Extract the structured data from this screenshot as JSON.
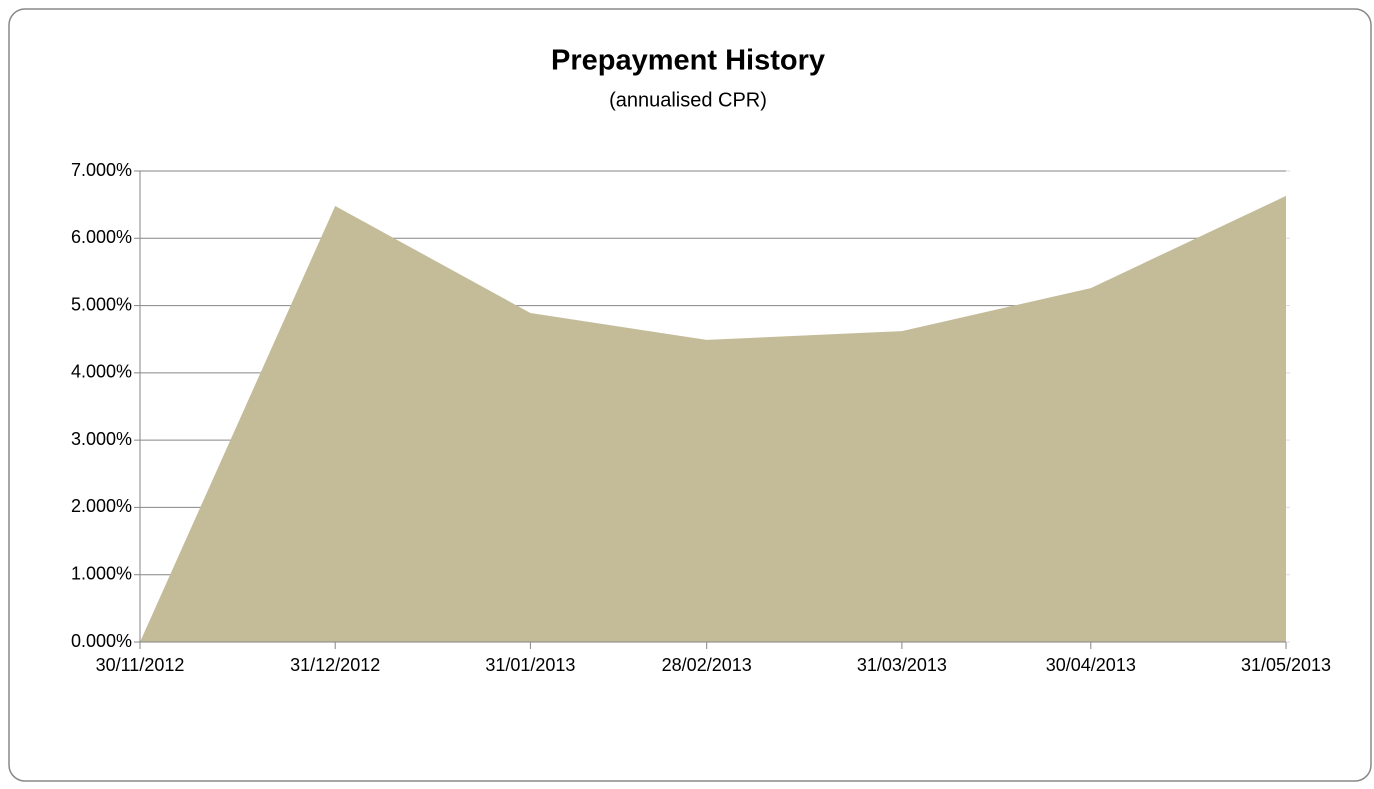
{
  "chart_data": {
    "type": "area",
    "title": "Prepayment History",
    "subtitle": "(annualised CPR)",
    "x": [
      "30/11/2012",
      "31/12/2012",
      "31/01/2013",
      "28/02/2013",
      "31/03/2013",
      "30/04/2013",
      "31/05/2013"
    ],
    "values": [
      0,
      6.48,
      4.89,
      4.49,
      4.62,
      5.26,
      6.63
    ],
    "color": "#c4bc99",
    "ylim": [
      0,
      7
    ],
    "yticks": [
      {
        "value": 0,
        "label": "0.000%"
      },
      {
        "value": 1,
        "label": "1.000%"
      },
      {
        "value": 2,
        "label": "2.000%"
      },
      {
        "value": 3,
        "label": "3.000%"
      },
      {
        "value": 4,
        "label": "4.000%"
      },
      {
        "value": 5,
        "label": "5.000%"
      },
      {
        "value": 6,
        "label": "6.000%"
      },
      {
        "value": 7,
        "label": "7.000%"
      }
    ],
    "grid": true
  }
}
